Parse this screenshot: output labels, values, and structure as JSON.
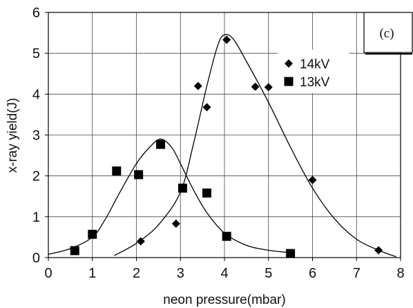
{
  "chart_data": {
    "type": "scatter",
    "title": "",
    "xlabel": "neon pressure(mbar)",
    "ylabel": "x-ray yield(J)",
    "xlim": [
      0,
      8
    ],
    "ylim": [
      0,
      6
    ],
    "x_ticks": [
      0,
      1,
      2,
      3,
      4,
      5,
      6,
      7,
      8
    ],
    "y_ticks": [
      0,
      1,
      2,
      3,
      4,
      5,
      6
    ],
    "grid": true,
    "legend_position": "top-right",
    "annotation": "(c)",
    "series": [
      {
        "name": "14kV",
        "marker": "diamond",
        "color": "#000000",
        "points": [
          {
            "x": 2.1,
            "y": 0.4
          },
          {
            "x": 2.9,
            "y": 0.83
          },
          {
            "x": 3.4,
            "y": 4.2
          },
          {
            "x": 3.6,
            "y": 3.68
          },
          {
            "x": 4.05,
            "y": 5.33
          },
          {
            "x": 4.7,
            "y": 4.18
          },
          {
            "x": 5.0,
            "y": 4.17
          },
          {
            "x": 6.0,
            "y": 1.9
          },
          {
            "x": 7.5,
            "y": 0.18
          }
        ],
        "fit_curve": [
          [
            1.5,
            0.05
          ],
          [
            2.0,
            0.35
          ],
          [
            2.5,
            0.8
          ],
          [
            3.0,
            1.6
          ],
          [
            3.3,
            2.8
          ],
          [
            3.6,
            4.2
          ],
          [
            3.85,
            5.2
          ],
          [
            4.0,
            5.45
          ],
          [
            4.2,
            5.35
          ],
          [
            4.5,
            4.8
          ],
          [
            5.0,
            3.8
          ],
          [
            5.5,
            2.7
          ],
          [
            6.0,
            1.7
          ],
          [
            6.5,
            0.95
          ],
          [
            7.0,
            0.45
          ],
          [
            7.5,
            0.18
          ],
          [
            7.9,
            0.02
          ]
        ]
      },
      {
        "name": "13kV",
        "marker": "square",
        "color": "#000000",
        "points": [
          {
            "x": 0.6,
            "y": 0.17
          },
          {
            "x": 1.0,
            "y": 0.57
          },
          {
            "x": 1.55,
            "y": 2.12
          },
          {
            "x": 2.05,
            "y": 2.03
          },
          {
            "x": 2.55,
            "y": 2.77
          },
          {
            "x": 3.05,
            "y": 1.7
          },
          {
            "x": 3.6,
            "y": 1.58
          },
          {
            "x": 4.05,
            "y": 0.52
          },
          {
            "x": 5.5,
            "y": 0.1
          }
        ],
        "fit_curve": [
          [
            0.0,
            0.08
          ],
          [
            0.5,
            0.22
          ],
          [
            1.0,
            0.5
          ],
          [
            1.3,
            0.95
          ],
          [
            1.6,
            1.55
          ],
          [
            2.0,
            2.3
          ],
          [
            2.3,
            2.7
          ],
          [
            2.55,
            2.9
          ],
          [
            2.8,
            2.7
          ],
          [
            3.0,
            2.3
          ],
          [
            3.3,
            1.65
          ],
          [
            3.6,
            1.1
          ],
          [
            4.0,
            0.6
          ],
          [
            4.5,
            0.3
          ],
          [
            5.0,
            0.18
          ],
          [
            5.5,
            0.12
          ]
        ]
      }
    ]
  }
}
